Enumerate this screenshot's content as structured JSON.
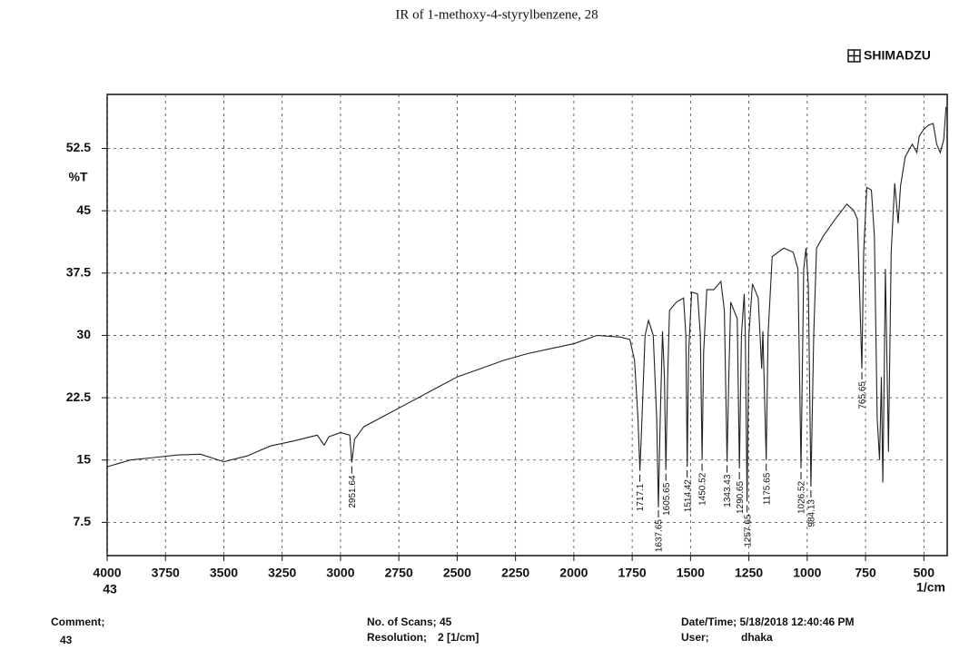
{
  "header": {
    "brand": "SHIMADZU"
  },
  "chart_data": {
    "type": "line",
    "title": "IR of 1-methoxy-4-styrylbenzene, 28",
    "xlabel": "1/cm",
    "ylabel": "%T",
    "corner_label": "43",
    "xlim": [
      4000,
      400
    ],
    "ylim": [
      3.5,
      59
    ],
    "xticks": [
      4000,
      3750,
      3500,
      3250,
      3000,
      2750,
      2500,
      2250,
      2000,
      1750,
      1500,
      1250,
      1000,
      750,
      500
    ],
    "yticks": [
      7.5,
      15,
      22.5,
      30,
      37.5,
      45,
      52.5
    ],
    "grid": true,
    "x": [
      4000,
      3900,
      3800,
      3700,
      3600,
      3500,
      3400,
      3300,
      3200,
      3100,
      3070,
      3050,
      3000,
      2960,
      2951.64,
      2940,
      2900,
      2800,
      2700,
      2600,
      2500,
      2400,
      2300,
      2200,
      2100,
      2000,
      1900,
      1800,
      1760,
      1740,
      1725,
      1717.1,
      1708,
      1695,
      1680,
      1660,
      1645,
      1637.65,
      1630,
      1620,
      1612,
      1605.65,
      1598,
      1590,
      1560,
      1530,
      1520,
      1514.42,
      1508,
      1495,
      1470,
      1458,
      1450.52,
      1444,
      1430,
      1400,
      1370,
      1355,
      1343.43,
      1336,
      1328,
      1300,
      1290.65,
      1282,
      1270,
      1265,
      1257.65,
      1250,
      1235,
      1210,
      1195,
      1190,
      1175.65,
      1168,
      1150,
      1100,
      1060,
      1040,
      1026.52,
      1015,
      1005,
      995,
      984.13,
      972,
      960,
      930,
      880,
      830,
      800,
      785,
      775,
      765.65,
      758,
      745,
      725,
      712,
      700,
      690,
      682,
      676,
      670,
      665,
      660,
      652,
      640,
      625,
      610,
      600,
      580,
      550,
      530,
      520,
      500,
      480,
      460,
      445,
      430,
      415,
      405
    ],
    "series": [
      {
        "color": "#222222",
        "values": [
          14.2,
          15.0,
          15.3,
          15.6,
          15.7,
          14.8,
          15.5,
          16.7,
          17.3,
          18.0,
          16.8,
          17.8,
          18.3,
          18.0,
          14.7,
          17.5,
          19.0,
          20.5,
          22.0,
          23.5,
          25.0,
          26.0,
          27.0,
          27.8,
          28.4,
          29.0,
          30.0,
          29.8,
          29.5,
          27,
          20,
          13.7,
          20,
          30,
          31.8,
          30,
          20,
          9.3,
          20,
          30.5,
          25,
          13.8,
          25,
          33,
          34,
          34.5,
          30,
          14.2,
          28,
          35.2,
          35,
          30,
          15,
          28,
          35.5,
          35.5,
          36.5,
          33,
          14.8,
          25,
          34,
          32,
          14,
          30,
          35,
          30,
          10,
          30,
          36.2,
          34.5,
          26,
          30.5,
          15,
          30,
          39.5,
          40.5,
          40,
          38,
          14,
          38,
          40.5,
          36,
          11.8,
          30,
          40.5,
          42,
          44,
          45.8,
          45,
          44,
          35,
          26,
          40,
          47.8,
          47.5,
          42,
          20,
          15,
          25,
          12.3,
          25,
          38,
          30,
          16,
          40,
          48.3,
          43.5,
          48,
          51.5,
          53,
          52,
          54,
          54.8,
          55.3,
          55.5,
          53,
          52,
          53.5,
          57.5
        ]
      }
    ],
    "peak_labels": [
      2951.64,
      1717.1,
      1637.65,
      1605.65,
      1514.42,
      1450.52,
      1343.43,
      1290.65,
      1257.65,
      1175.65,
      1026.52,
      984.13,
      765.65
    ]
  },
  "footer": [
    {
      "label": "Comment;",
      "value": "43"
    },
    {
      "label": "No. of Scans; 45"
    },
    {
      "label": "Resolution;",
      "value": "2 [1/cm]"
    },
    {
      "label": "Date/Time; 5/18/2018 12:40:46 PM"
    },
    {
      "label": "User;",
      "value": "dhaka"
    }
  ]
}
